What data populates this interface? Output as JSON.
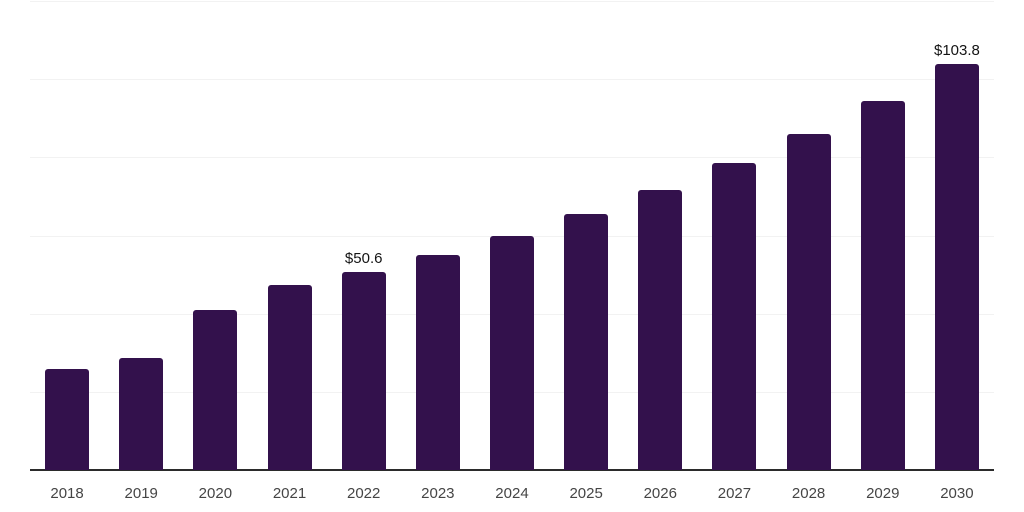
{
  "chart_data": {
    "type": "bar",
    "title": "",
    "xlabel": "",
    "ylabel": "",
    "categories": [
      "2018",
      "2019",
      "2020",
      "2021",
      "2022",
      "2023",
      "2024",
      "2025",
      "2026",
      "2027",
      "2028",
      "2029",
      "2030"
    ],
    "values": [
      25.8,
      28.6,
      41.0,
      47.3,
      50.6,
      55.0,
      59.9,
      65.6,
      71.6,
      78.6,
      85.9,
      94.5,
      103.8
    ],
    "point_labels": [
      null,
      null,
      null,
      null,
      "$50.6",
      null,
      null,
      null,
      null,
      null,
      null,
      null,
      "$103.8"
    ],
    "ylim": [
      0,
      120
    ],
    "ytick_step": 20,
    "y_axis_labels_visible": false,
    "grid": true,
    "legend": "none",
    "colors": {
      "bar": "#33114C",
      "gridline": "#F2F2F2",
      "axis": "#2B2B2B",
      "tick_label": "#454545",
      "data_label": "#141414",
      "background": "#FFFFFF"
    }
  }
}
